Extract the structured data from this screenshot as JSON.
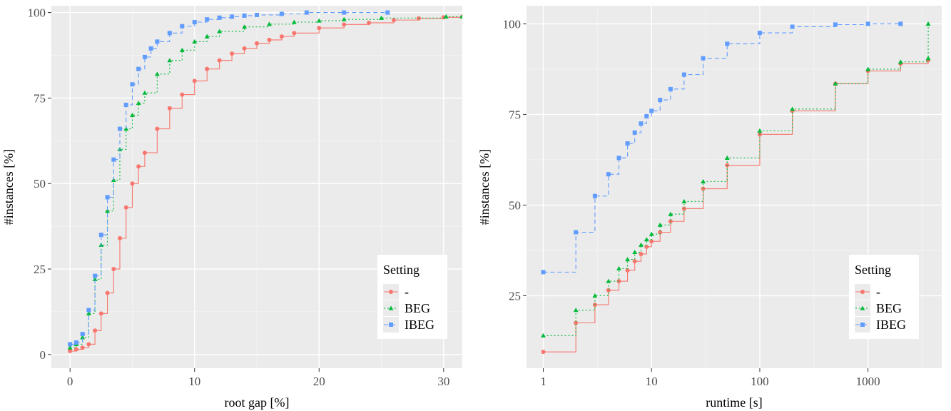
{
  "chart_data": [
    {
      "type": "line",
      "subtype": "ecdf-step",
      "xlabel": "root gap [%]",
      "ylabel": "#instances [%]",
      "xlim": [
        -1.5,
        31.5
      ],
      "ylim": [
        -4,
        102
      ],
      "x_scale": "linear",
      "x_ticks": [
        0,
        10,
        20,
        30
      ],
      "x_tick_labels": [
        "0",
        "10",
        "20",
        "30"
      ],
      "y_ticks": [
        0,
        25,
        50,
        75,
        100
      ],
      "y_tick_labels": [
        "0",
        "25",
        "50",
        "75",
        "100"
      ],
      "grid": true,
      "legend": {
        "title": "Setting",
        "position": "bottom-right"
      },
      "series": [
        {
          "name": "-",
          "color": "#F8766D",
          "marker": "circle",
          "linestyle": "solid",
          "x": [
            0,
            0.5,
            1,
            1.5,
            2,
            2.5,
            3,
            3.5,
            4,
            4.5,
            5,
            5.5,
            6,
            7,
            8,
            9,
            10,
            11,
            12,
            13,
            14,
            15,
            16,
            17,
            18,
            20,
            22,
            24,
            26,
            28,
            30,
            31.5
          ],
          "y": [
            1,
            1.5,
            2,
            3,
            7,
            12,
            18,
            25,
            34,
            43,
            50,
            55,
            59,
            66,
            72,
            76,
            80,
            83.5,
            86,
            88,
            89.5,
            91,
            92,
            93,
            94,
            95.5,
            96.5,
            97,
            97.8,
            98.3,
            98.6,
            98.8
          ]
        },
        {
          "name": "BEG",
          "color": "#00BA38",
          "marker": "triangle",
          "linestyle": "dotted",
          "x": [
            0,
            0.5,
            1,
            1.5,
            2,
            2.5,
            3,
            3.5,
            4,
            4.5,
            5,
            5.5,
            6,
            7,
            8,
            9,
            10,
            11,
            12,
            14,
            16,
            18,
            20,
            22,
            25,
            30.2,
            31.5
          ],
          "y": [
            2,
            3,
            5,
            12,
            22,
            32,
            42,
            51,
            60,
            66,
            70,
            73.5,
            76.5,
            82,
            86,
            89,
            91.5,
            93,
            94.5,
            95.8,
            96.6,
            97.2,
            97.6,
            98,
            98.4,
            98.8,
            98.8
          ]
        },
        {
          "name": "IBEG",
          "color": "#619CFF",
          "marker": "square",
          "linestyle": "dashed",
          "x": [
            0,
            0.5,
            1,
            1.5,
            2,
            2.5,
            3,
            3.5,
            4,
            4.5,
            5,
            5.5,
            6,
            6.5,
            7,
            8,
            9,
            10,
            11,
            12,
            13,
            14,
            15,
            17,
            19,
            22,
            25.5
          ],
          "y": [
            3,
            3.5,
            6,
            13,
            23,
            35,
            46,
            57,
            66,
            73,
            79,
            83.5,
            87,
            89.5,
            91.5,
            94,
            96,
            97.2,
            98,
            98.5,
            98.8,
            99.1,
            99.3,
            99.6,
            100,
            100,
            100
          ]
        }
      ]
    },
    {
      "type": "line",
      "subtype": "ecdf-step",
      "xlabel": "runtime [s]",
      "ylabel": "#instances [%]",
      "xlim": [
        0.7,
        4800
      ],
      "ylim": [
        5,
        105
      ],
      "x_scale": "log10",
      "x_ticks": [
        1,
        10,
        100,
        1000
      ],
      "x_tick_labels": [
        "1",
        "10",
        "100",
        "1000"
      ],
      "y_ticks": [
        25,
        50,
        75,
        100
      ],
      "y_tick_labels": [
        "25",
        "50",
        "75",
        "100"
      ],
      "grid": true,
      "legend": {
        "title": "Setting",
        "position": "bottom-right"
      },
      "series": [
        {
          "name": "-",
          "color": "#F8766D",
          "marker": "circle",
          "linestyle": "solid",
          "x": [
            1,
            2,
            3,
            4,
            5,
            6,
            7,
            8,
            9,
            10,
            12,
            15,
            20,
            30,
            50,
            100,
            200,
            500,
            1000,
            2000,
            3600,
            3600
          ],
          "y": [
            9.5,
            17.5,
            22.5,
            26.5,
            29,
            32,
            34.5,
            36.5,
            38.5,
            40,
            42.5,
            45.5,
            49,
            54.5,
            61,
            69.5,
            76,
            83.5,
            87,
            89,
            90,
            90
          ]
        },
        {
          "name": "BEG",
          "color": "#00BA38",
          "marker": "triangle",
          "linestyle": "dotted",
          "x": [
            1,
            2,
            3,
            4,
            5,
            6,
            7,
            8,
            9,
            10,
            12,
            15,
            20,
            30,
            50,
            100,
            200,
            500,
            1000,
            2000,
            3600,
            3600
          ],
          "y": [
            14,
            21,
            25,
            29,
            32.5,
            35,
            37,
            39,
            40.5,
            42,
            44.5,
            47.5,
            51,
            56.5,
            63,
            70.5,
            76.5,
            83.5,
            87.5,
            89.5,
            90.5,
            100
          ]
        },
        {
          "name": "IBEG",
          "color": "#619CFF",
          "marker": "square",
          "linestyle": "dashed",
          "x": [
            1,
            2,
            3,
            4,
            5,
            6,
            7,
            8,
            9,
            10,
            12,
            15,
            20,
            30,
            50,
            100,
            200,
            500,
            1000,
            2000
          ],
          "y": [
            31.5,
            42.5,
            52.5,
            58.5,
            63,
            67,
            70,
            72.5,
            74.5,
            76,
            79,
            82,
            86,
            90.5,
            94.5,
            97.5,
            99.2,
            99.8,
            100,
            100
          ]
        }
      ]
    }
  ]
}
